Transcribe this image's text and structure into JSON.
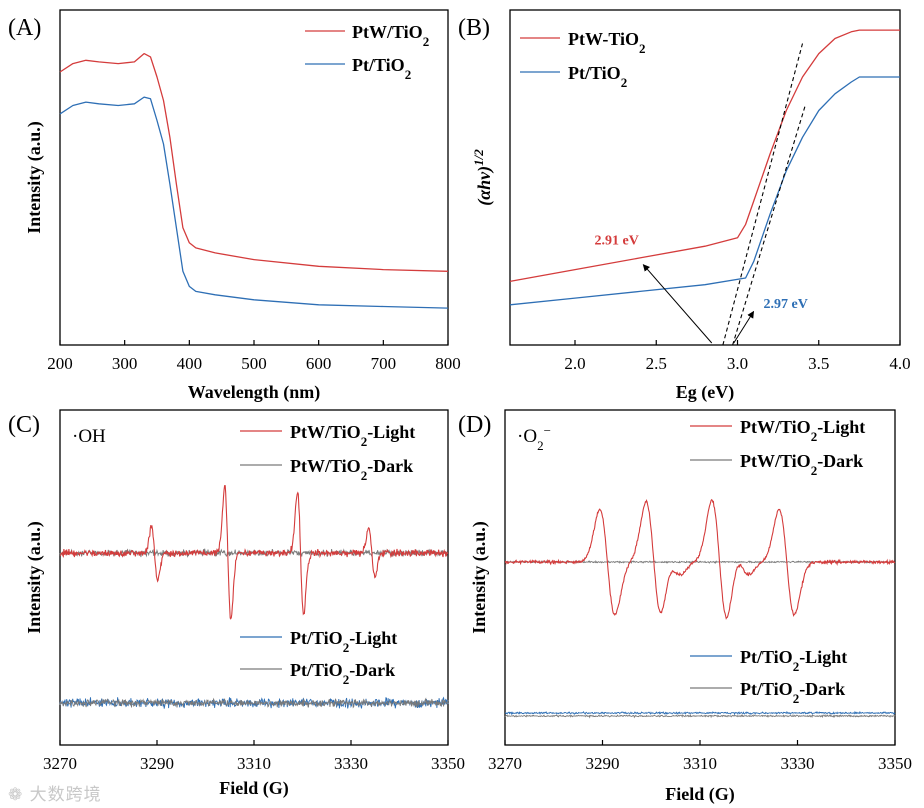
{
  "watermark": "大数跨境",
  "chart_data": [
    {
      "panel": "(A)",
      "type": "line",
      "xlabel": "Wavelength (nm)",
      "ylabel": "Intensity (a.u.)",
      "xlim": [
        200,
        800
      ],
      "ylim": [
        0,
        1
      ],
      "xticks": [
        200,
        300,
        400,
        500,
        600,
        700,
        800
      ],
      "y_tick_labels": false,
      "legend": "top-right",
      "series": [
        {
          "name": "PtW/TiO2",
          "color": "#d43c3c",
          "x": [
            200,
            220,
            240,
            260,
            290,
            315,
            330,
            340,
            350,
            360,
            370,
            380,
            390,
            400,
            410,
            440,
            500,
            600,
            700,
            800
          ],
          "y": [
            0.815,
            0.84,
            0.85,
            0.845,
            0.84,
            0.845,
            0.87,
            0.86,
            0.8,
            0.73,
            0.62,
            0.48,
            0.35,
            0.305,
            0.29,
            0.275,
            0.255,
            0.235,
            0.225,
            0.22
          ]
        },
        {
          "name": "Pt/TiO2",
          "color": "#2e6fb5",
          "x": [
            200,
            220,
            240,
            260,
            290,
            315,
            330,
            340,
            350,
            360,
            370,
            380,
            390,
            400,
            410,
            440,
            500,
            600,
            700,
            800
          ],
          "y": [
            0.69,
            0.715,
            0.725,
            0.72,
            0.715,
            0.72,
            0.74,
            0.735,
            0.67,
            0.6,
            0.48,
            0.35,
            0.22,
            0.175,
            0.16,
            0.15,
            0.135,
            0.12,
            0.115,
            0.11
          ]
        }
      ]
    },
    {
      "panel": "(B)",
      "type": "line",
      "xlabel": "Eg (eV)",
      "ylabel": "(αhν)1/2",
      "xlim": [
        1.6,
        4.0
      ],
      "ylim": [
        0,
        1
      ],
      "xticks": [
        2.0,
        2.5,
        3.0,
        3.5,
        4.0
      ],
      "y_tick_labels": false,
      "legend": "top-left",
      "series": [
        {
          "name": "PtW-TiO2",
          "color": "#d43c3c",
          "x": [
            1.6,
            2.0,
            2.4,
            2.8,
            3.0,
            3.05,
            3.1,
            3.2,
            3.3,
            3.4,
            3.5,
            3.6,
            3.7,
            3.75,
            3.8,
            4.0
          ],
          "y": [
            0.19,
            0.225,
            0.26,
            0.295,
            0.32,
            0.36,
            0.43,
            0.57,
            0.7,
            0.8,
            0.87,
            0.915,
            0.935,
            0.94,
            0.94,
            0.94
          ]
        },
        {
          "name": "Pt/TiO2",
          "color": "#2e6fb5",
          "x": [
            1.6,
            2.0,
            2.4,
            2.8,
            3.05,
            3.1,
            3.2,
            3.3,
            3.4,
            3.5,
            3.6,
            3.7,
            3.75,
            3.8,
            4.0
          ],
          "y": [
            0.12,
            0.14,
            0.16,
            0.18,
            0.2,
            0.25,
            0.39,
            0.52,
            0.62,
            0.7,
            0.75,
            0.785,
            0.8,
            0.8,
            0.8
          ]
        }
      ],
      "tangent_lines": [
        {
          "x": [
            2.91,
            3.4
          ],
          "y": [
            0.0,
            0.9
          ]
        },
        {
          "x": [
            2.97,
            3.42
          ],
          "y": [
            0.0,
            0.72
          ]
        }
      ],
      "annotations": [
        {
          "text": "2.91 eV",
          "color": "#d43c3c",
          "points_to": 2.91
        },
        {
          "text": "2.97 eV",
          "color": "#2e6fb5",
          "points_to": 2.97
        }
      ]
    },
    {
      "panel": "(C)",
      "type": "line",
      "species": "·OH",
      "xlabel": "Field (G)",
      "ylabel": "Intensity (a.u.)",
      "xlim": [
        3270,
        3350
      ],
      "xticks": [
        3270,
        3290,
        3310,
        3330,
        3350
      ],
      "y_tick_labels": false,
      "legend": "top-right",
      "series": [
        {
          "name": "PtW/TiO2-Light",
          "color": "#d43c3c",
          "baseline": 0.0,
          "peaks": [
            {
              "x": 3289.5,
              "amp": 0.3
            },
            {
              "x": 3304.6,
              "amp": 0.75
            },
            {
              "x": 3319.6,
              "amp": 0.7
            },
            {
              "x": 3334.3,
              "amp": 0.28
            }
          ]
        },
        {
          "name": "PtW/TiO2-Dark",
          "color": "#7a7a7a",
          "baseline": 0.0,
          "peaks": []
        },
        {
          "name": "Pt/TiO2-Light",
          "color": "#2e6fb5",
          "baseline": -1.7,
          "peaks": []
        },
        {
          "name": "Pt/TiO2-Dark",
          "color": "#7a7a7a",
          "baseline": -1.7,
          "peaks": []
        }
      ]
    },
    {
      "panel": "(D)",
      "type": "line",
      "species": "·O2−",
      "xlabel": "Field (G)",
      "ylabel": "Intensity (a.u.)",
      "xlim": [
        3270,
        3350
      ],
      "xticks": [
        3270,
        3290,
        3310,
        3330,
        3350
      ],
      "y_tick_labels": false,
      "legend": "top-right",
      "series": [
        {
          "name": "PtW/TiO2-Light",
          "color": "#d43c3c",
          "baseline": 0.0,
          "peaks": [
            {
              "x": 3291,
              "amp": 0.6
            },
            {
              "x": 3300.5,
              "amp": 0.68
            },
            {
              "x": 3304.5,
              "amp": 0.14
            },
            {
              "x": 3314,
              "amp": 0.7
            },
            {
              "x": 3318.5,
              "amp": 0.14
            },
            {
              "x": 3327.8,
              "amp": 0.6
            }
          ]
        },
        {
          "name": "PtW/TiO2-Dark",
          "color": "#7a7a7a",
          "baseline": 0.0,
          "peaks": []
        },
        {
          "name": "Pt/TiO2-Light",
          "color": "#2e6fb5",
          "baseline": -1.6,
          "peaks": []
        },
        {
          "name": "Pt/TiO2-Dark",
          "color": "#7a7a7a",
          "baseline": -1.62,
          "peaks": []
        }
      ]
    }
  ]
}
